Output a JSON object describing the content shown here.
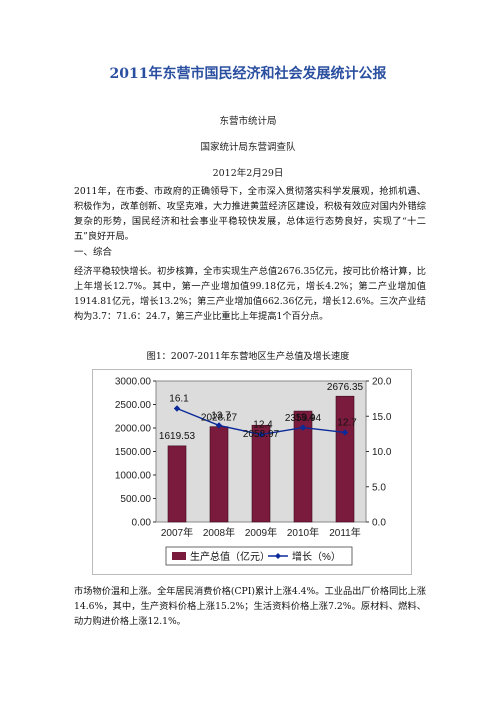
{
  "doc": {
    "title": "2011年东营市国民经济和社会发展统计公报",
    "issuer1": "东营市统计局",
    "issuer2": "国家统计局东营调查队",
    "date": "2012年2月29日",
    "intro": "2011年，在市委、市政府的正确领导下，全市深入贯彻落实科学发展观，抢抓机遇、积极作为，改革创新、攻坚克难，大力推进黄蓝经济区建设，积极有效应对国内外错综复杂的形势，国民经济和社会事业平稳较快发展，总体运行态势良好，实现了“十二五”良好开局。",
    "section1": "一、综合",
    "para2": "经济平稳较快增长。初步核算，全市实现生产总值2676.35亿元，按可比价格计算，比上年增长12.7%。其中，第一产业增加值99.18亿元，增长4.2%；第二产业增加值1914.81亿元，增长13.2%；第三产业增加值662.36亿元，增长12.6%。三次产业结构为3.7：71.6：24.7，第三产业比重比上年提高1个百分点。",
    "fig_caption": "图1：2007-2011年东营地区生产总值及增长速度",
    "para3": "市场物价温和上涨。全年居民消费价格(CPI)累计上涨4.4%。工业品出厂价格同比上涨14.6%，其中，生产资料价格上涨15.2%；生活资料价格上涨7.2%。原材料、燃料、动力购进价格上涨12.1%。"
  },
  "chart_data": {
    "type": "bar+line",
    "categories": [
      "2007年",
      "2008年",
      "2009年",
      "2010年",
      "2011年"
    ],
    "series": [
      {
        "name": "生产总值（亿元）",
        "type": "bar",
        "axis": "left",
        "values": [
          1619.53,
          2028.27,
          2058.97,
          2359.94,
          2676.35
        ],
        "labels": [
          "1619.53",
          "2028.27",
          "2058.97",
          "2359.94",
          "2676.35"
        ],
        "color": "#7a1a3c"
      },
      {
        "name": "增长（%）",
        "type": "line",
        "axis": "right",
        "values": [
          16.1,
          13.7,
          12.4,
          13.4,
          12.7
        ],
        "labels": [
          "16.1",
          "13.7",
          "12.4",
          "13.4",
          "12.7"
        ],
        "color": "#0b2a9a"
      }
    ],
    "ylim_left": [
      0,
      3000
    ],
    "yticks_left": [
      "0.00",
      "500.00",
      "1000.00",
      "1500.00",
      "2000.00",
      "2500.00",
      "3000.00"
    ],
    "ylim_right": [
      0,
      20
    ],
    "yticks_right": [
      "0.0",
      "5.0",
      "10.0",
      "15.0",
      "20.0"
    ],
    "legend_position": "bottom",
    "background": "#dcdcdc"
  }
}
